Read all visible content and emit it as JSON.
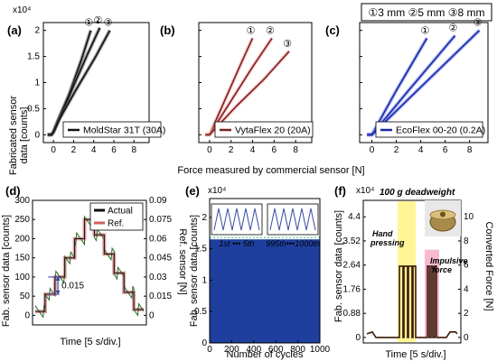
{
  "panels_top": [
    {
      "id": "a",
      "tag": "(a)",
      "legend": "MoldStar 31T (30A)",
      "color": "#111111",
      "shadow": "#555555",
      "curves": [
        {
          "label": "①",
          "points": [
            [
              -0.6,
              0
            ],
            [
              -0.2,
              0
            ],
            [
              0,
              0.05
            ],
            [
              0.5,
              0.3
            ],
            [
              1.5,
              0.75
            ],
            [
              2.8,
              1.45
            ],
            [
              3.7,
              2.0
            ]
          ]
        },
        {
          "label": "②",
          "points": [
            [
              -0.6,
              0
            ],
            [
              -0.2,
              0
            ],
            [
              0,
              0.05
            ],
            [
              0.5,
              0.28
            ],
            [
              1.8,
              0.85
            ],
            [
              3.4,
              1.55
            ],
            [
              4.6,
              2.05
            ]
          ]
        },
        {
          "label": "③",
          "points": [
            [
              -0.6,
              0
            ],
            [
              -0.2,
              0
            ],
            [
              0,
              0.05
            ],
            [
              0.6,
              0.3
            ],
            [
              2.2,
              0.85
            ],
            [
              4.2,
              1.5
            ],
            [
              5.6,
              2.0
            ]
          ]
        }
      ]
    },
    {
      "id": "b",
      "tag": "(b)",
      "legend": "VytaFlex 20 (20A)",
      "color": "#7a2222",
      "shadow": "#ff9a9a",
      "curves": [
        {
          "label": "①",
          "points": [
            [
              -0.4,
              0
            ],
            [
              0,
              0
            ],
            [
              1.5,
              0.7
            ],
            [
              3.0,
              1.4
            ],
            [
              4.0,
              1.85
            ]
          ]
        },
        {
          "label": "②",
          "points": [
            [
              -0.4,
              0
            ],
            [
              0,
              0
            ],
            [
              2.0,
              0.65
            ],
            [
              4.0,
              1.3
            ],
            [
              5.8,
              1.85
            ]
          ]
        },
        {
          "label": "③",
          "points": [
            [
              -0.4,
              0
            ],
            [
              0,
              0
            ],
            [
              2.5,
              0.55
            ],
            [
              5.0,
              1.05
            ],
            [
              7.4,
              1.6
            ]
          ]
        }
      ]
    },
    {
      "id": "c",
      "tag": "(c)",
      "legend": "EcoFlex 00-20 (0.2A)",
      "color": "#1a2a9a",
      "shadow": "#6a7aff",
      "curves": [
        {
          "label": "①",
          "points": [
            [
              -0.4,
              0
            ],
            [
              0,
              0
            ],
            [
              2.0,
              0.85
            ],
            [
              4.5,
              1.85
            ]
          ]
        },
        {
          "label": "②",
          "points": [
            [
              -0.4,
              0
            ],
            [
              0,
              0
            ],
            [
              3.0,
              0.85
            ],
            [
              6.8,
              1.9
            ]
          ]
        },
        {
          "label": "③",
          "points": [
            [
              -0.4,
              0
            ],
            [
              0,
              0
            ],
            [
              3.5,
              0.8
            ],
            [
              8.8,
              2.0
            ]
          ]
        }
      ]
    }
  ],
  "top_axes": {
    "exponent": "x10⁴",
    "ylabel": "Fabricated sensor\ndata [counts]",
    "yticks": [
      "0",
      "0.5",
      "1",
      "1.5",
      "2"
    ],
    "xticks": [
      "0",
      "2",
      "4",
      "6",
      "8"
    ],
    "xlabel": "Force measured by commercial sensor [N]",
    "size_legend": "①3 mm ②5 mm ③8 mm"
  },
  "panel_d": {
    "tag": "(d)",
    "ylabel": "Fab. sensor data [counts]",
    "y2label": "Ref. sensor [N]",
    "yticks": [
      "0",
      "50",
      "100",
      "150",
      "200",
      "250",
      "300"
    ],
    "y2ticks": [
      "0",
      "0.015",
      "0.03",
      "0.045",
      "0.06",
      "0.075",
      "0.09"
    ],
    "xlabel": "Time [5 s/div.]",
    "legend": [
      "Actual",
      "Ref."
    ],
    "annotation": "0.015",
    "steps": [
      10,
      55,
      100,
      150,
      200,
      250,
      210,
      160,
      110,
      60,
      15
    ]
  },
  "panel_e": {
    "tag": "(e)",
    "exponent": "x10⁴",
    "ylabel": "Fab. sensor data [counts]",
    "yticks": [
      "0",
      "0.5",
      "1",
      "1.5",
      "2"
    ],
    "xticks": [
      "0",
      "200",
      "400",
      "600",
      "800",
      "1000"
    ],
    "xlabel": "Number of cycles",
    "inset_left": "1st ••• 5th",
    "inset_right": "995th•••1000th",
    "fill_level": 1.65
  },
  "panel_f": {
    "tag": "(f)",
    "exponent": "x10⁴",
    "ylabel": "Fab. sensor data [counts]",
    "y2label": "Converted Force [N]",
    "yticks": [
      "0",
      "0.88",
      "1.76",
      "2.64",
      "3.52",
      "4.4"
    ],
    "y2ticks": [
      "0",
      "2",
      "4",
      "6",
      "8",
      "10"
    ],
    "xlabel": "Time [5 s/div.]",
    "title": "100 g deadweight",
    "hand_label": "Hand\npressing",
    "impulse_label": "Impulsive\nforce"
  }
}
